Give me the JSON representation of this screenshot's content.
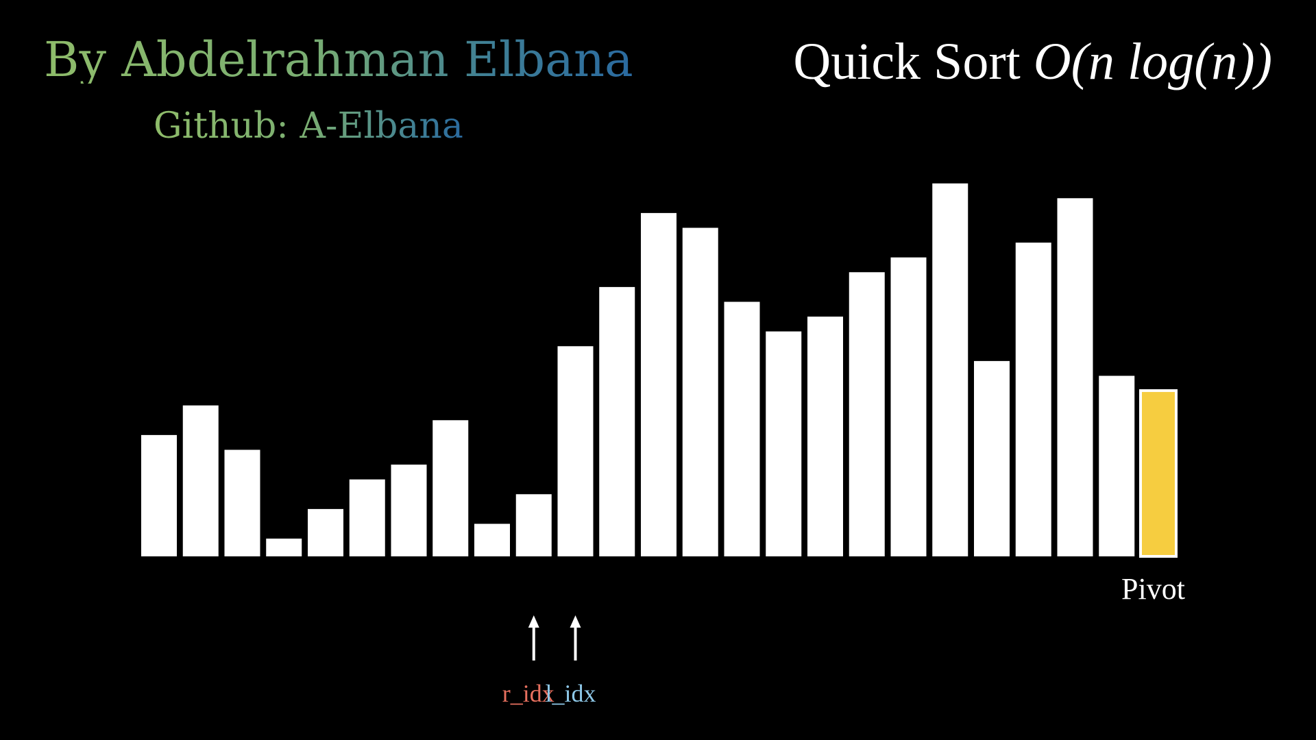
{
  "header": {
    "author": "By Abdelrahman Elbana",
    "github": "Github: A-Elbana",
    "title_text": "Quick Sort ",
    "title_complexity": "O(n log(n))"
  },
  "chart_data": {
    "type": "bar",
    "title": "Quick Sort O(n log(n))",
    "values": [
      8.2,
      10.2,
      7.2,
      1.2,
      3.2,
      5.2,
      6.2,
      9.2,
      2.2,
      4.2,
      14.2,
      18.2,
      23.2,
      22.2,
      17.2,
      15.2,
      16.2,
      19.2,
      20.2,
      25.2,
      13.2,
      21.2,
      24.2,
      12.2,
      11.2
    ],
    "ylim": [
      0,
      26
    ],
    "pivot_index": 24,
    "pointers": [
      {
        "name": "r_idx",
        "index": 9
      },
      {
        "name": "l_idx",
        "index": 10
      }
    ]
  },
  "labels": {
    "pivot": "Pivot",
    "r_idx": "r_idx",
    "l_idx": "l_idx"
  },
  "colors": {
    "background": "#000000",
    "bar": "#ffffff",
    "pivot_fill": "#f6cd40",
    "pivot_border": "#ffffff",
    "r_idx": "#e8705f",
    "l_idx": "#8ec8e8",
    "arrow": "#ffffff"
  }
}
